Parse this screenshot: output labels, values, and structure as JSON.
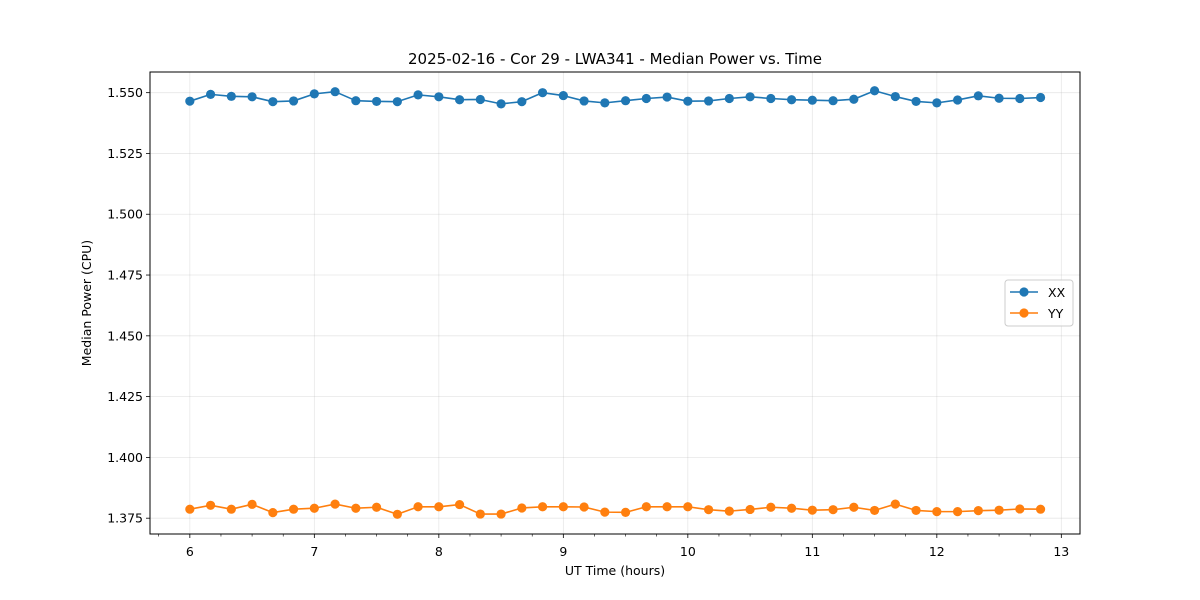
{
  "chart_data": {
    "type": "line",
    "title": "2025-02-16 - Cor 29 - LWA341 - Median Power vs. Time",
    "xlabel": "UT Time (hours)",
    "ylabel": "Median Power (CPU)",
    "xlim": [
      5.68,
      13.15
    ],
    "ylim": [
      1.3685,
      1.5585
    ],
    "xticks": [
      6,
      7,
      8,
      9,
      10,
      11,
      12,
      13
    ],
    "xtick_labels": [
      "6",
      "7",
      "8",
      "9",
      "10",
      "11",
      "12",
      "13"
    ],
    "yticks": [
      1.375,
      1.4,
      1.425,
      1.45,
      1.475,
      1.5,
      1.525,
      1.55
    ],
    "ytick_labels": [
      "1.375",
      "1.400",
      "1.425",
      "1.450",
      "1.475",
      "1.500",
      "1.525",
      "1.550"
    ],
    "grid": true,
    "legend_position": "center-right",
    "x": [
      6.0,
      6.1667,
      6.3333,
      6.5,
      6.6667,
      6.8333,
      7.0,
      7.1667,
      7.3333,
      7.5,
      7.6667,
      7.8333,
      8.0,
      8.1667,
      8.3333,
      8.5,
      8.6667,
      8.8333,
      9.0,
      9.1667,
      9.3333,
      9.5,
      9.6667,
      9.8333,
      10.0,
      10.1667,
      10.3333,
      10.5,
      10.6667,
      10.8333,
      11.0,
      11.1667,
      11.3333,
      11.5,
      11.6667,
      11.8333,
      12.0,
      12.1667,
      12.3333,
      12.5,
      12.6667,
      12.8333
    ],
    "series": [
      {
        "name": "XX",
        "color": "#1f77b4",
        "values": [
          1.5465,
          1.5493,
          1.5485,
          1.5483,
          1.5463,
          1.5466,
          1.5495,
          1.5504,
          1.5467,
          1.5464,
          1.5463,
          1.5491,
          1.5483,
          1.5471,
          1.5472,
          1.5454,
          1.5463,
          1.55,
          1.5488,
          1.5466,
          1.5458,
          1.5467,
          1.5476,
          1.5482,
          1.5465,
          1.5466,
          1.5476,
          1.5483,
          1.5476,
          1.5471,
          1.5469,
          1.5467,
          1.5473,
          1.5508,
          1.5484,
          1.5464,
          1.5458,
          1.547,
          1.5487,
          1.5477,
          1.5476,
          1.548
        ]
      },
      {
        "name": "YY",
        "color": "#ff7f0e",
        "values": [
          1.3787,
          1.3803,
          1.3787,
          1.3807,
          1.3773,
          1.3787,
          1.3791,
          1.3808,
          1.3791,
          1.3795,
          1.3766,
          1.3797,
          1.3797,
          1.3806,
          1.3767,
          1.3767,
          1.3792,
          1.3797,
          1.3797,
          1.3796,
          1.3775,
          1.3774,
          1.3797,
          1.3797,
          1.3797,
          1.3785,
          1.3779,
          1.3786,
          1.3795,
          1.3791,
          1.3783,
          1.3785,
          1.3795,
          1.3782,
          1.3808,
          1.3782,
          1.3777,
          1.3777,
          1.3781,
          1.3783,
          1.3788,
          1.3787
        ]
      }
    ]
  }
}
